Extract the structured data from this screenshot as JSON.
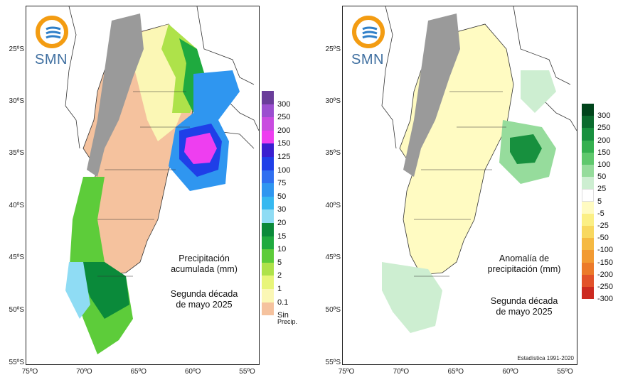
{
  "org": {
    "name": "SMN"
  },
  "lat_ticks": [
    "25ºS",
    "30ºS",
    "35ºS",
    "40ºS",
    "45ºS",
    "50ºS",
    "55ºS"
  ],
  "lon_ticks": [
    "75ºO",
    "70ºO",
    "65ºO",
    "60ºO",
    "55ºO"
  ],
  "left_map": {
    "title_line1": "Precipitación",
    "title_line2": "acumulada (mm)",
    "period_line1": "Segunda década",
    "period_line2": "de mayo 2025",
    "legend": [
      {
        "label": "300",
        "color": "#6a3d9a"
      },
      {
        "label": "250",
        "color": "#9b4fd0"
      },
      {
        "label": "200",
        "color": "#c94ce0"
      },
      {
        "label": "150",
        "color": "#ee3ef0"
      },
      {
        "label": "125",
        "color": "#3a1fd0"
      },
      {
        "label": "100",
        "color": "#1f3fe8"
      },
      {
        "label": "75",
        "color": "#2f6ff0"
      },
      {
        "label": "50",
        "color": "#2f96f0"
      },
      {
        "label": "30",
        "color": "#36b8f0"
      },
      {
        "label": "20",
        "color": "#8fdcf4"
      },
      {
        "label": "15",
        "color": "#0a8a3a"
      },
      {
        "label": "10",
        "color": "#1faa3f"
      },
      {
        "label": "5",
        "color": "#5dcc3a"
      },
      {
        "label": "2",
        "color": "#aee24a"
      },
      {
        "label": "1",
        "color": "#e8f57a"
      },
      {
        "label": "0.1",
        "color": "#fbf7b5"
      },
      {
        "label": "Sin",
        "label2": "Precip.",
        "color": "#f5c29e"
      }
    ]
  },
  "right_map": {
    "title_line1": "Anomalía de",
    "title_line2": "precipitación (mm)",
    "period_line1": "Segunda década",
    "period_line2": "de mayo 2025",
    "footer": "Estadística 1991-2020",
    "legend": [
      {
        "label": "300",
        "color": "#00441b"
      },
      {
        "label": "250",
        "color": "#0b6b2e"
      },
      {
        "label": "200",
        "color": "#17903e"
      },
      {
        "label": "150",
        "color": "#34b04f"
      },
      {
        "label": "100",
        "color": "#5fc86d"
      },
      {
        "label": "50",
        "color": "#96dc9c"
      },
      {
        "label": "25",
        "color": "#cdeed1"
      },
      {
        "label": "5",
        "color": "#ffffff"
      },
      {
        "label": "-5",
        "color": "#fffbc2"
      },
      {
        "label": "-25",
        "color": "#fbef85"
      },
      {
        "label": "-50",
        "color": "#f8d860"
      },
      {
        "label": "-100",
        "color": "#f5b942"
      },
      {
        "label": "-150",
        "color": "#f29a32"
      },
      {
        "label": "-200",
        "color": "#ec7a2a"
      },
      {
        "label": "-250",
        "color": "#e2522a"
      },
      {
        "label": "-300",
        "color": "#cc2a20"
      }
    ]
  }
}
